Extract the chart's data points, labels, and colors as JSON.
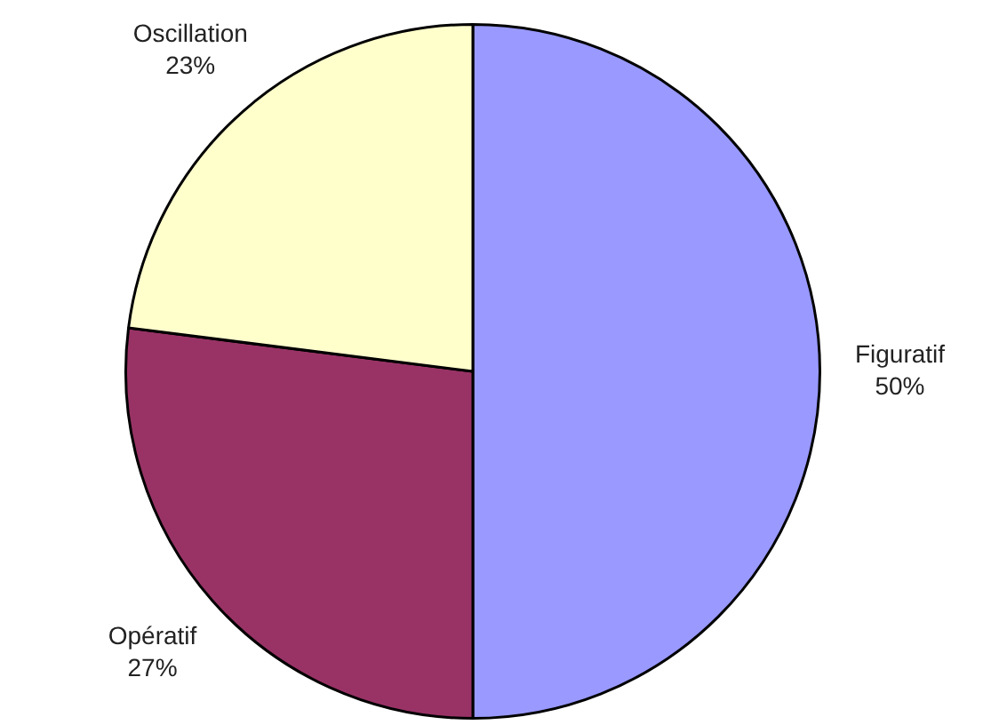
{
  "chart_data": {
    "type": "pie",
    "categories": [
      "Figuratif",
      "Opératif",
      "Oscillation"
    ],
    "values": [
      50,
      27,
      23
    ],
    "colors": [
      "#9999ff",
      "#993366",
      "#ffffcc"
    ],
    "value_labels": [
      "50%",
      "27%",
      "23%"
    ],
    "legend": false
  }
}
